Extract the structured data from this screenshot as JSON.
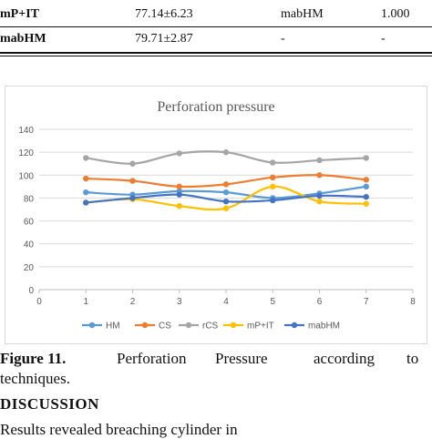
{
  "table": {
    "rows": [
      {
        "technique": "mP+IT",
        "value": "77.14±6.23",
        "compare": "mabHM",
        "p": "1.000"
      },
      {
        "technique": "mabHM",
        "value": "79.71±2.87",
        "compare": "-",
        "p": "-"
      }
    ]
  },
  "chart_data": {
    "type": "line",
    "title": "Perforation pressure",
    "xlabel": "",
    "ylabel": "",
    "xlim": [
      0,
      8
    ],
    "ylim": [
      0,
      140
    ],
    "x_ticks": [
      "0",
      "1",
      "2",
      "3",
      "4",
      "5",
      "6",
      "7",
      "8"
    ],
    "y_ticks": [
      "0",
      "20",
      "40",
      "60",
      "80",
      "100",
      "120",
      "140"
    ],
    "grid": "horizontal",
    "legend_position": "bottom",
    "x": [
      1,
      2,
      3,
      4,
      5,
      6,
      7
    ],
    "series": [
      {
        "name": "HM",
        "color": "#5b9bd5",
        "values": [
          85,
          83,
          86,
          85,
          80,
          84,
          90
        ]
      },
      {
        "name": "CS",
        "color": "#ed7d31",
        "values": [
          97,
          95,
          90,
          92,
          98,
          100,
          96
        ]
      },
      {
        "name": "rCS",
        "color": "#a5a5a5",
        "values": [
          115,
          110,
          119,
          120,
          111,
          113,
          115
        ]
      },
      {
        "name": "mP+IT",
        "color": "#ffc000",
        "values": [
          76,
          79,
          73,
          71,
          90,
          77,
          75
        ]
      },
      {
        "name": "mabHM",
        "color": "#4472c4",
        "values": [
          76,
          80,
          83,
          77,
          78,
          82,
          81
        ]
      }
    ]
  },
  "caption": {
    "label": "Figure 11.",
    "words": [
      "Perforation",
      "Pressure",
      "according",
      "to"
    ],
    "line2": "techniques."
  },
  "section": {
    "heading": "DISCUSSION"
  },
  "body": {
    "fragment": "Results revealed breaching cylinder in"
  }
}
